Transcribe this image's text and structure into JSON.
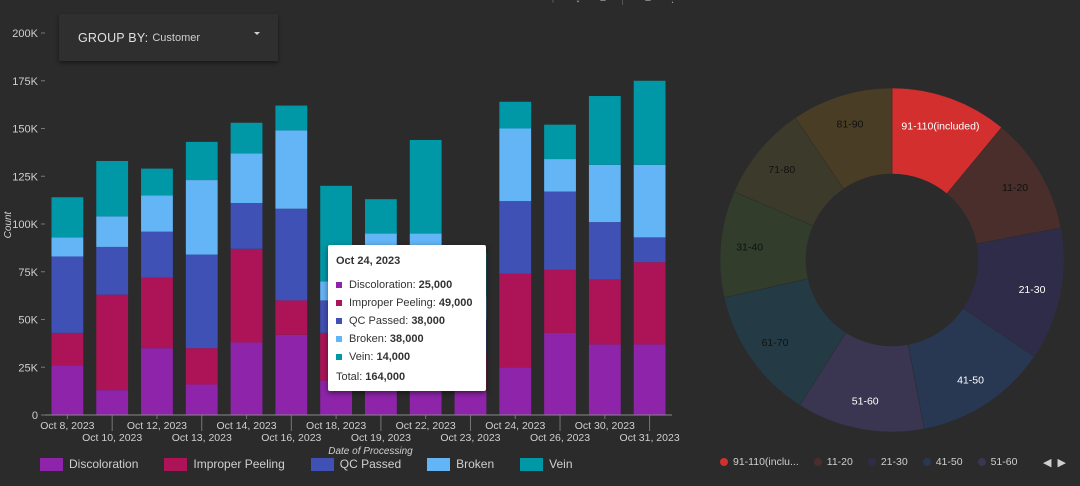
{
  "group_by": {
    "label": "GROUP BY:",
    "value": "Customer"
  },
  "toolbar": {
    "icons": [
      "download-icon",
      "filter-icon",
      "sort-icon",
      "tune-icon",
      "more-vert-icon"
    ]
  },
  "chart_data": [
    {
      "type": "bar",
      "stacked": true,
      "xlabel": "Date of Processing",
      "ylabel": "Count",
      "ylim": [
        0,
        200000
      ],
      "yticks": [
        0,
        25000,
        50000,
        75000,
        100000,
        125000,
        150000,
        175000,
        200000
      ],
      "ytick_labels": [
        "0",
        "25K",
        "50K",
        "75K",
        "100K",
        "125K",
        "150K",
        "175K",
        "200K"
      ],
      "categories": [
        "Oct 8, 2023",
        "Oct 10, 2023",
        "Oct 12, 2023",
        "Oct 13, 2023",
        "Oct 14, 2023",
        "Oct 16, 2023",
        "Oct 18, 2023",
        "Oct 19, 2023",
        "Oct 22, 2023",
        "Oct 23, 2023",
        "Oct 24, 2023",
        "Oct 26, 2023",
        "Oct 30, 2023",
        "Oct 31, 2023"
      ],
      "series": [
        {
          "name": "Discoloration",
          "color": "#8e24aa",
          "values": [
            26000,
            13000,
            35000,
            16000,
            38000,
            42000,
            18000,
            15000,
            14000,
            12000,
            25000,
            43000,
            37000,
            37000
          ]
        },
        {
          "name": "Improper Peeling",
          "color": "#ad1457",
          "values": [
            17000,
            50000,
            37000,
            19000,
            49000,
            18000,
            25000,
            22000,
            25000,
            20000,
            49000,
            33000,
            34000,
            43000
          ]
        },
        {
          "name": "QC Passed",
          "color": "#3f51b5",
          "values": [
            40000,
            25000,
            24000,
            49000,
            24000,
            48000,
            17000,
            17000,
            17000,
            18000,
            38000,
            41000,
            30000,
            13000
          ]
        },
        {
          "name": "Broken",
          "color": "#64b5f6",
          "values": [
            10000,
            16000,
            19000,
            39000,
            26000,
            41000,
            10000,
            41000,
            39000,
            12000,
            38000,
            17000,
            30000,
            38000
          ]
        },
        {
          "name": "Vein",
          "color": "#0097a7",
          "values": [
            21000,
            29000,
            14000,
            20000,
            16000,
            13000,
            50000,
            18000,
            49000,
            23000,
            14000,
            18000,
            36000,
            44000
          ]
        }
      ],
      "legend": "bottom",
      "grid": false
    },
    {
      "type": "pie",
      "donut": true,
      "slices": [
        {
          "label": "91-110(included)",
          "legend_label": "91-110(inclu...",
          "value": 11,
          "color": "#d32f2f"
        },
        {
          "label": "11-20",
          "value": 11,
          "color": "#4a2e2b"
        },
        {
          "label": "21-30",
          "value": 12.5,
          "color": "#2f2c49"
        },
        {
          "label": "41-50",
          "value": 12.5,
          "color": "#283852"
        },
        {
          "label": "51-60",
          "value": 12,
          "color": "#3a3550"
        },
        {
          "label": "61-70",
          "value": 12.5,
          "color": "#243a44"
        },
        {
          "label": "31-40",
          "value": 10,
          "color": "#323d2c"
        },
        {
          "label": "71-80",
          "value": 9,
          "color": "#3c3a2a"
        },
        {
          "label": "81-90",
          "value": 9.5,
          "color": "#4a3d26"
        }
      ],
      "legend_visible": [
        "91-110(inclu...",
        "11-20",
        "21-30",
        "41-50",
        "51-60"
      ],
      "legend": "bottom"
    }
  ],
  "tooltip": {
    "title": "Oct 24, 2023",
    "rows": [
      {
        "label": "Discoloration:",
        "value": "25,000",
        "color": "#8e24aa"
      },
      {
        "label": "Improper Peeling:",
        "value": "49,000",
        "color": "#ad1457"
      },
      {
        "label": "QC Passed:",
        "value": "38,000",
        "color": "#3f51b5"
      },
      {
        "label": "Broken:",
        "value": "38,000",
        "color": "#64b5f6"
      },
      {
        "label": "Vein:",
        "value": "14,000",
        "color": "#0097a7"
      }
    ],
    "total_label": "Total:",
    "total_value": "164,000"
  },
  "pie_pager": {
    "prev": "◀",
    "next": "▶"
  }
}
